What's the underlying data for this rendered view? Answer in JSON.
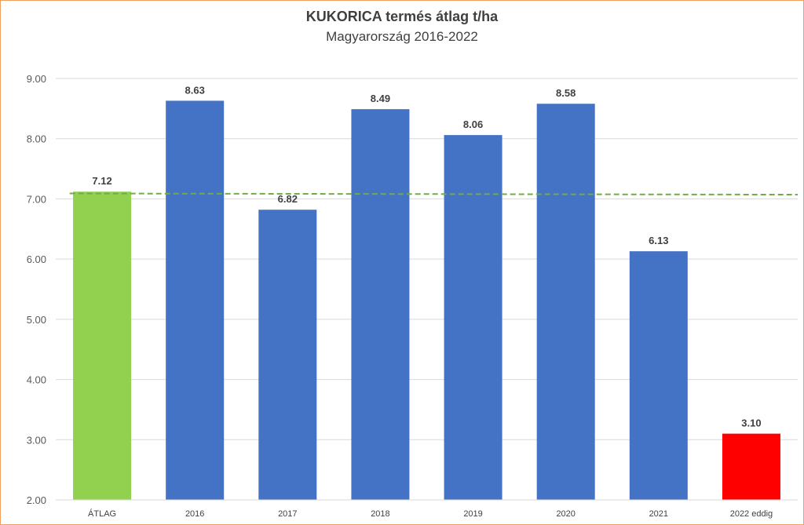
{
  "chart_data": {
    "type": "bar",
    "title": "KUKORICA termés átlag t/ha",
    "subtitle": "Magyarország 2016-2022",
    "xlabel": "",
    "ylabel": "",
    "categories": [
      "ÁTLAG",
      "2016",
      "2017",
      "2018",
      "2019",
      "2020",
      "2021",
      "2022 eddig"
    ],
    "values": [
      7.12,
      8.63,
      6.82,
      8.49,
      8.06,
      8.58,
      6.13,
      3.1
    ],
    "data_labels": [
      "7.12",
      "8.63",
      "6.82",
      "8.49",
      "8.06",
      "8.58",
      "6.13",
      "3.10"
    ],
    "bar_colors": [
      "#92d050",
      "#4472c4",
      "#4472c4",
      "#4472c4",
      "#4472c4",
      "#4472c4",
      "#4472c4",
      "#ff0000"
    ],
    "ylim": [
      2.0,
      9.0
    ],
    "yticks": [
      2.0,
      3.0,
      4.0,
      5.0,
      6.0,
      7.0,
      8.0,
      9.0
    ],
    "ytick_labels": [
      "2.00",
      "3.00",
      "4.00",
      "5.00",
      "6.00",
      "7.00",
      "8.00",
      "9.00"
    ],
    "grid": true,
    "legend": "none",
    "trendline": {
      "style": "dashed",
      "color": "#70ad47",
      "start_value": 7.09,
      "end_value": 7.07
    }
  }
}
